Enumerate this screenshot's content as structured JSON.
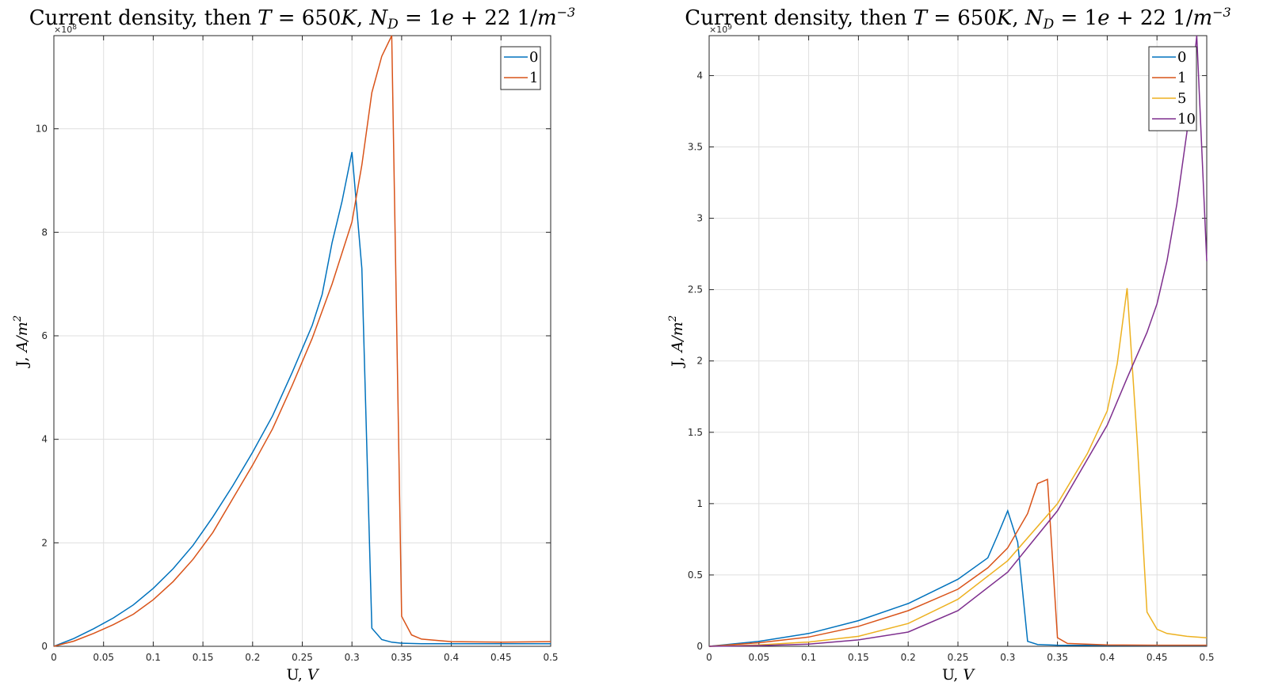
{
  "chart_data": [
    {
      "type": "line",
      "title": "Current density, then T = 650K, N_D = 1e + 22 1/m^-3",
      "title_parts": {
        "prefix": "Current density, then",
        "t_var": "T",
        "t_eq": " = 650",
        "t_unit": "K",
        "sep": ", ",
        "nd_var": "N",
        "nd_sub": "D",
        "nd_eq": " = 1",
        "nd_e": "e",
        "nd_rest": " + 22 1/",
        "nd_m": "m",
        "nd_exp": "−3"
      },
      "xlabel": "U, V",
      "xlabel_parts": {
        "text": "U, ",
        "var": "V"
      },
      "ylabel": "J, A/m^2",
      "ylabel_parts": {
        "text": "J, ",
        "var": "A/m",
        "exp": "2"
      },
      "xlim": [
        0,
        0.5
      ],
      "ylim": [
        0,
        11.8
      ],
      "y_multiplier": "×10^8",
      "y_multiplier_parts": {
        "base": "×10",
        "exp": "8"
      },
      "xticks": [
        "0",
        "0.05",
        "0.1",
        "0.15",
        "0.2",
        "0.25",
        "0.3",
        "0.35",
        "0.4",
        "0.45",
        "0.5"
      ],
      "xtick_values": [
        0,
        0.05,
        0.1,
        0.15,
        0.2,
        0.25,
        0.3,
        0.35,
        0.4,
        0.45,
        0.5
      ],
      "yticks": [
        "0",
        "2",
        "4",
        "6",
        "8",
        "10"
      ],
      "ytick_values": [
        0,
        2,
        4,
        6,
        8,
        10
      ],
      "grid": true,
      "legend_position": "top-right",
      "series": [
        {
          "name": "0",
          "color": "#0072BD",
          "x": [
            0,
            0.02,
            0.04,
            0.06,
            0.08,
            0.1,
            0.12,
            0.14,
            0.16,
            0.18,
            0.2,
            0.22,
            0.24,
            0.26,
            0.27,
            0.28,
            0.29,
            0.3,
            0.31,
            0.32,
            0.33,
            0.34,
            0.35,
            0.37,
            0.4,
            0.45,
            0.5
          ],
          "y": [
            0,
            0.15,
            0.34,
            0.55,
            0.8,
            1.12,
            1.5,
            1.95,
            2.5,
            3.1,
            3.75,
            4.45,
            5.3,
            6.2,
            6.8,
            7.8,
            8.6,
            9.55,
            7.3,
            0.35,
            0.13,
            0.08,
            0.06,
            0.05,
            0.05,
            0.05,
            0.05
          ]
        },
        {
          "name": "1",
          "color": "#D95319",
          "x": [
            0,
            0.02,
            0.04,
            0.06,
            0.08,
            0.1,
            0.12,
            0.14,
            0.16,
            0.18,
            0.2,
            0.22,
            0.24,
            0.26,
            0.28,
            0.3,
            0.31,
            0.32,
            0.33,
            0.34,
            0.35,
            0.36,
            0.37,
            0.4,
            0.45,
            0.5
          ],
          "y": [
            0,
            0.1,
            0.25,
            0.42,
            0.62,
            0.9,
            1.25,
            1.68,
            2.2,
            2.85,
            3.5,
            4.2,
            5.05,
            5.95,
            7.0,
            8.2,
            9.3,
            10.7,
            11.4,
            11.8,
            0.58,
            0.22,
            0.14,
            0.09,
            0.08,
            0.09
          ]
        }
      ]
    },
    {
      "type": "line",
      "title": "Current density, then T = 650K, N_D = 1e + 22 1/m^-3",
      "title_parts": {
        "prefix": "Current density, then",
        "t_var": "T",
        "t_eq": " = 650",
        "t_unit": "K",
        "sep": ", ",
        "nd_var": "N",
        "nd_sub": "D",
        "nd_eq": " = 1",
        "nd_e": "e",
        "nd_rest": " + 22 1/",
        "nd_m": "m",
        "nd_exp": "−3"
      },
      "xlabel": "U, V",
      "xlabel_parts": {
        "text": "U, ",
        "var": "V"
      },
      "ylabel": "J, A/m^2",
      "ylabel_parts": {
        "text": "J, ",
        "var": "A/m",
        "exp": "2"
      },
      "xlim": [
        0,
        0.5
      ],
      "ylim": [
        0,
        4.28
      ],
      "y_multiplier": "×10^9",
      "y_multiplier_parts": {
        "base": "×10",
        "exp": "9"
      },
      "xticks": [
        "0",
        "0.05",
        "0.1",
        "0.15",
        "0.2",
        "0.25",
        "0.3",
        "0.35",
        "0.4",
        "0.45",
        "0.5"
      ],
      "xtick_values": [
        0,
        0.05,
        0.1,
        0.15,
        0.2,
        0.25,
        0.3,
        0.35,
        0.4,
        0.45,
        0.5
      ],
      "yticks": [
        "0",
        "0.5",
        "1",
        "1.5",
        "2",
        "2.5",
        "3",
        "3.5",
        "4"
      ],
      "ytick_values": [
        0,
        0.5,
        1,
        1.5,
        2,
        2.5,
        3,
        3.5,
        4
      ],
      "grid": true,
      "legend_position": "top-right",
      "series": [
        {
          "name": "0",
          "color": "#0072BD",
          "x": [
            0,
            0.05,
            0.1,
            0.15,
            0.2,
            0.25,
            0.28,
            0.29,
            0.3,
            0.31,
            0.32,
            0.33,
            0.35,
            0.4,
            0.45,
            0.5
          ],
          "y": [
            0,
            0.035,
            0.09,
            0.18,
            0.3,
            0.47,
            0.62,
            0.78,
            0.95,
            0.73,
            0.035,
            0.013,
            0.008,
            0.006,
            0.005,
            0.005
          ]
        },
        {
          "name": "1",
          "color": "#D95319",
          "x": [
            0,
            0.05,
            0.1,
            0.15,
            0.2,
            0.25,
            0.28,
            0.3,
            0.32,
            0.33,
            0.34,
            0.35,
            0.36,
            0.4,
            0.45,
            0.5
          ],
          "y": [
            0,
            0.025,
            0.065,
            0.14,
            0.25,
            0.4,
            0.55,
            0.69,
            0.93,
            1.14,
            1.17,
            0.06,
            0.02,
            0.01,
            0.008,
            0.008
          ]
        },
        {
          "name": "5",
          "color": "#EDB120",
          "x": [
            0,
            0.05,
            0.1,
            0.15,
            0.2,
            0.25,
            0.3,
            0.35,
            0.38,
            0.4,
            0.41,
            0.42,
            0.43,
            0.44,
            0.45,
            0.46,
            0.48,
            0.5
          ],
          "y": [
            0,
            0.01,
            0.03,
            0.07,
            0.16,
            0.33,
            0.6,
            1.0,
            1.35,
            1.65,
            1.98,
            2.51,
            1.45,
            0.24,
            0.12,
            0.09,
            0.07,
            0.06
          ]
        },
        {
          "name": "10",
          "color": "#7E2F8E",
          "x": [
            0,
            0.05,
            0.1,
            0.15,
            0.2,
            0.25,
            0.3,
            0.35,
            0.4,
            0.42,
            0.44,
            0.45,
            0.46,
            0.47,
            0.48,
            0.49,
            0.5
          ],
          "y": [
            0,
            0.005,
            0.015,
            0.045,
            0.1,
            0.25,
            0.52,
            0.95,
            1.55,
            1.88,
            2.2,
            2.4,
            2.7,
            3.1,
            3.6,
            4.28,
            2.7
          ]
        }
      ]
    }
  ]
}
